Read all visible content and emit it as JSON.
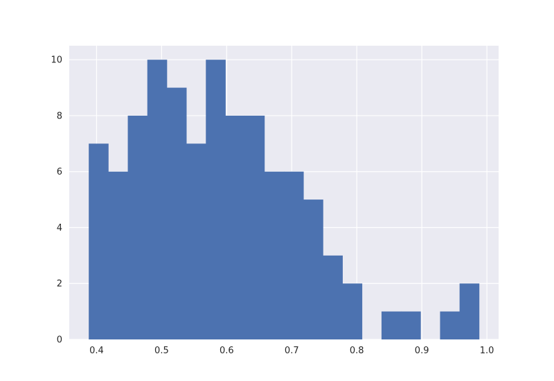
{
  "chart_data": {
    "type": "bar",
    "style": "histogram",
    "title": "",
    "xlabel": "",
    "ylabel": "",
    "bin_edges": [
      0.388,
      0.418,
      0.448,
      0.478,
      0.508,
      0.538,
      0.568,
      0.598,
      0.628,
      0.658,
      0.688,
      0.718,
      0.748,
      0.778,
      0.808,
      0.838,
      0.868,
      0.898,
      0.928,
      0.958,
      0.988
    ],
    "counts": [
      7,
      6,
      8,
      10,
      9,
      7,
      10,
      8,
      8,
      6,
      6,
      5,
      3,
      2,
      0,
      1,
      1,
      0,
      1,
      2
    ],
    "xlim": [
      0.358,
      1.018
    ],
    "ylim": [
      0,
      10.5
    ],
    "xticks": [
      0.4,
      0.5,
      0.6,
      0.7,
      0.8,
      0.9,
      1.0
    ],
    "xtick_labels": [
      "0.4",
      "0.5",
      "0.6",
      "0.7",
      "0.8",
      "0.9",
      "1.0"
    ],
    "yticks": [
      0,
      2,
      4,
      6,
      8,
      10
    ],
    "ytick_labels": [
      "0",
      "2",
      "4",
      "6",
      "8",
      "10"
    ],
    "grid": true,
    "colors": {
      "bar": "#4c72b0",
      "plot_background": "#eaeaf2",
      "grid": "#ffffff",
      "text": "#262626"
    }
  }
}
